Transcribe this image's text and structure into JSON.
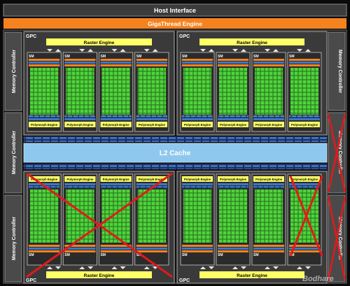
{
  "host_interface": "Host Interface",
  "gigathread_engine": "GigaThread Engine",
  "l2_cache": "L2 Cache",
  "memory_controller": "Memory Controller",
  "gpc_label": "GPC",
  "raster_engine": "Raster Engine",
  "sm_label": "SM",
  "polymorph_engine": "Polymorph Engine",
  "watermark": "Bodhare",
  "colors": {
    "orange": "#f5821f",
    "yellow": "#ffff66",
    "cuda_green": "#4fd43c",
    "blue_cache": "#8fc8ee",
    "blue_bar": "#3c78c8",
    "disabled_cross": "#e21a1a",
    "frame_gray": "#5a5a5a"
  },
  "disabled": {
    "gpc_bottom_left": true,
    "sm_bottom_right_last": true,
    "memory_controller_right_middle": true,
    "memory_controller_right_bottom": true
  }
}
